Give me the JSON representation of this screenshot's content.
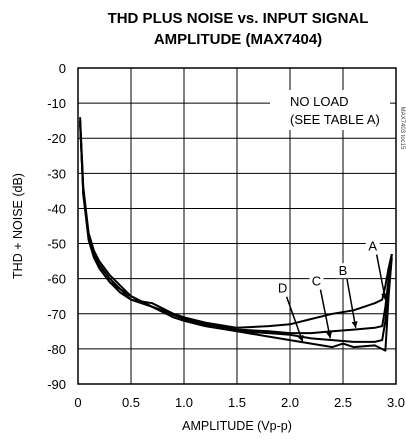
{
  "chart_data": {
    "type": "line",
    "title_line1": "THD PLUS NOISE vs. INPUT SIGNAL",
    "title_line2": "AMPLITUDE (MAX7404)",
    "xlabel": "AMPLITUDE (Vp-p)",
    "ylabel": "THD + NOISE (dB)",
    "xlim": [
      0,
      3.0
    ],
    "ylim": [
      -90,
      0
    ],
    "x_ticks": [
      "0",
      "0.5",
      "1.0",
      "1.5",
      "2.0",
      "2.5",
      "3.0"
    ],
    "y_ticks": [
      "0",
      "-10",
      "-20",
      "-30",
      "-40",
      "-50",
      "-60",
      "-70",
      "-80",
      "-90"
    ],
    "grid": true,
    "annotation_line1": "NO LOAD",
    "annotation_line2": "(SEE TABLE A)",
    "figure_code": "MAX7403 toc15",
    "series": [
      {
        "name": "A",
        "x": [
          0.02,
          0.05,
          0.1,
          0.15,
          0.2,
          0.3,
          0.4,
          0.5,
          0.7,
          1.0,
          1.2,
          1.5,
          1.8,
          2.0,
          2.2,
          2.4,
          2.6,
          2.8,
          2.87,
          2.9,
          2.93,
          2.96
        ],
        "y": [
          -16,
          -35,
          -48,
          -53,
          -56,
          -60,
          -63,
          -65,
          -68,
          -71,
          -72.5,
          -74,
          -73.5,
          -73,
          -71.5,
          -70,
          -69,
          -67,
          -66,
          -62,
          -57,
          -53
        ]
      },
      {
        "name": "B",
        "x": [
          0.02,
          0.05,
          0.1,
          0.15,
          0.2,
          0.3,
          0.4,
          0.5,
          0.7,
          1.0,
          1.2,
          1.5,
          1.8,
          2.0,
          2.2,
          2.4,
          2.6,
          2.8,
          2.87,
          2.9,
          2.93,
          2.96
        ],
        "y": [
          -14,
          -34,
          -47,
          -52,
          -55,
          -59,
          -62,
          -65,
          -68,
          -71.5,
          -73,
          -74.5,
          -75,
          -75.5,
          -75.5,
          -75,
          -74.5,
          -74,
          -73.5,
          -68,
          -60,
          -53
        ]
      },
      {
        "name": "C",
        "x": [
          0.02,
          0.05,
          0.1,
          0.15,
          0.2,
          0.3,
          0.4,
          0.5,
          0.7,
          0.9,
          1.0,
          1.2,
          1.5,
          1.8,
          2.0,
          2.2,
          2.4,
          2.6,
          2.8,
          2.87,
          2.9,
          2.93,
          2.96
        ],
        "y": [
          -15,
          -36,
          -48,
          -53,
          -57,
          -61,
          -63,
          -66,
          -67,
          -70,
          -71,
          -73,
          -75,
          -75.5,
          -76,
          -77,
          -77.5,
          -78,
          -78,
          -77.5,
          -72,
          -62,
          -53
        ]
      },
      {
        "name": "D",
        "x": [
          0.02,
          0.05,
          0.1,
          0.15,
          0.2,
          0.3,
          0.4,
          0.5,
          0.7,
          0.9,
          1.0,
          1.2,
          1.5,
          1.8,
          2.0,
          2.2,
          2.4,
          2.5,
          2.6,
          2.8,
          2.9,
          2.93,
          2.96
        ],
        "y": [
          -15,
          -36,
          -49,
          -54,
          -57,
          -61,
          -64,
          -66,
          -68,
          -71,
          -72,
          -73.5,
          -75,
          -76.5,
          -77.5,
          -78.5,
          -79.5,
          -78.5,
          -79.5,
          -79,
          -80.5,
          -65,
          -54
        ]
      }
    ],
    "series_labels": [
      {
        "name": "A",
        "x": 2.78,
        "y": -52,
        "arrow_to_x": 2.9,
        "arrow_to_y": -66
      },
      {
        "name": "B",
        "x": 2.5,
        "y": -59,
        "arrow_to_x": 2.62,
        "arrow_to_y": -74
      },
      {
        "name": "C",
        "x": 2.25,
        "y": -62,
        "arrow_to_x": 2.38,
        "arrow_to_y": -77
      },
      {
        "name": "D",
        "x": 1.93,
        "y": -64,
        "arrow_to_x": 2.12,
        "arrow_to_y": -78
      }
    ]
  }
}
